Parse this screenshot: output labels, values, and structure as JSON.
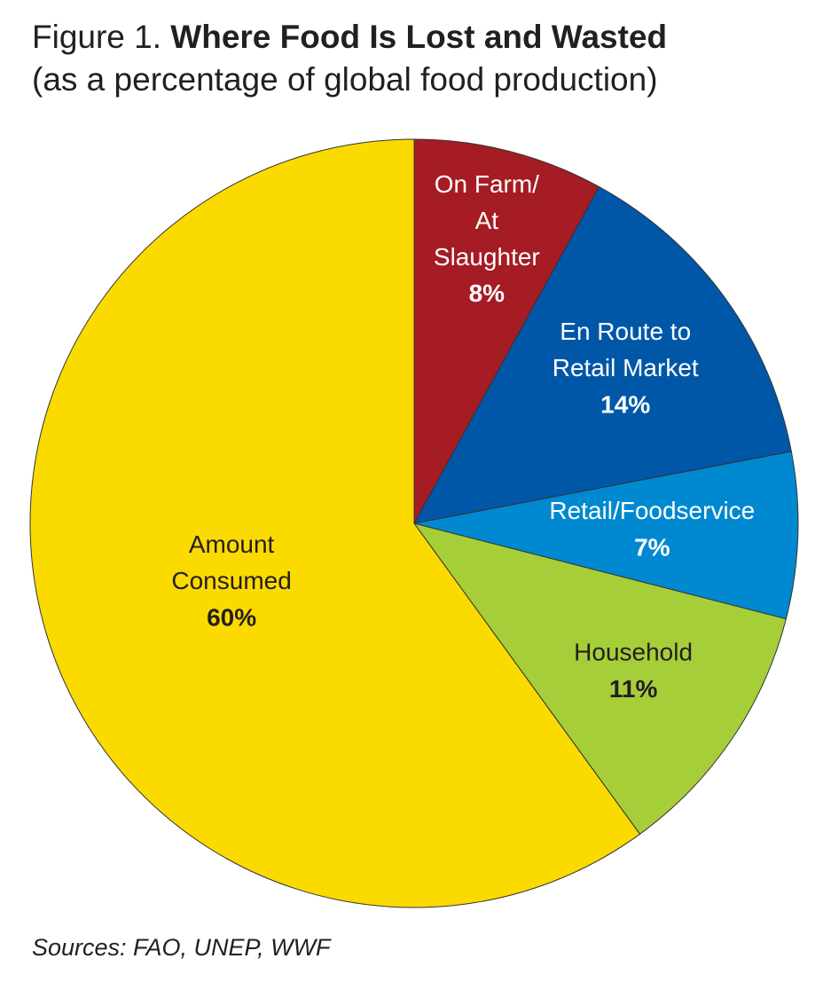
{
  "chart_data": {
    "type": "pie",
    "title_prefix": "Figure 1.",
    "title": "Where Food Is Lost and Wasted",
    "subtitle": "(as a percentage of global food production)",
    "source": "Sources: FAO, UNEP, WWF",
    "categories": [
      "On Farm/\nAt\nSlaughter",
      "En Route to\nRetail Market",
      "Retail/Foodservice",
      "Household",
      "Amount\nConsumed"
    ],
    "values": [
      8,
      14,
      7,
      11,
      60
    ],
    "value_labels": [
      "8%",
      "14%",
      "7%",
      "11%",
      "60%"
    ],
    "colors": [
      "#a51c24",
      "#0057a8",
      "#0089d0",
      "#a6ce39",
      "#fbda00"
    ],
    "label_colors": [
      "#ffffff",
      "#ffffff",
      "#ffffff",
      "#231f20",
      "#231f20"
    ]
  }
}
